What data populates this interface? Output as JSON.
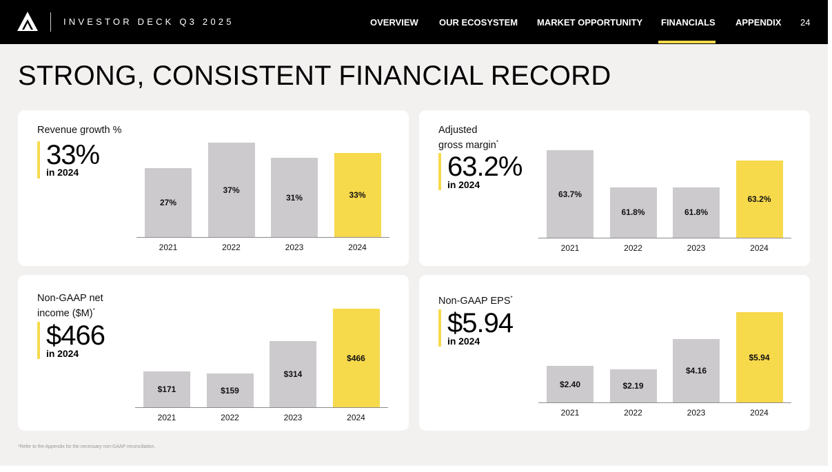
{
  "header": {
    "deck_title": "INVESTOR DECK Q3 2025",
    "nav": [
      "OVERVIEW",
      "OUR ECOSYSTEM",
      "MARKET OPPORTUNITY",
      "FINANCIALS",
      "APPENDIX"
    ],
    "active_nav": "FINANCIALS",
    "page_number": "24"
  },
  "page_title": "STRONG, CONSISTENT FINANCIAL RECORD",
  "colors": {
    "highlight": "#f7d94c",
    "bar": "#cccacd",
    "topbar": "#000000",
    "background": "#f3f0f0"
  },
  "cards": [
    {
      "label_line1": "Revenue growth %",
      "label_line2": "",
      "footnote_mark": "",
      "kpi_value": "33%",
      "kpi_in": "in",
      "kpi_year": "2024"
    },
    {
      "label_line1": "Adjusted",
      "label_line2": "gross margin",
      "footnote_mark": "*",
      "kpi_value": "63.2%",
      "kpi_in": "in",
      "kpi_year": "2024"
    },
    {
      "label_line1": "Non-GAAP net",
      "label_line2": "income ($M)",
      "footnote_mark": "*",
      "kpi_value": "$466",
      "kpi_in": "in",
      "kpi_year": "2024"
    },
    {
      "label_line1": "Non-GAAP EPS",
      "label_line2": "",
      "footnote_mark": "*",
      "kpi_value": "$5.94",
      "kpi_in": "in",
      "kpi_year": "2024"
    }
  ],
  "chart_data": [
    {
      "type": "bar",
      "title": "Revenue growth %",
      "categories": [
        "2021",
        "2022",
        "2023",
        "2024"
      ],
      "values": [
        27,
        37,
        31,
        33
      ],
      "data_labels": [
        "27%",
        "37%",
        "31%",
        "33%"
      ],
      "highlight_index": 3,
      "ylim": [
        0,
        40
      ]
    },
    {
      "type": "bar",
      "title": "Adjusted gross margin",
      "categories": [
        "2021",
        "2022",
        "2023",
        "2024"
      ],
      "values": [
        63.7,
        61.8,
        61.8,
        63.2
      ],
      "data_labels": [
        "63.7%",
        "61.8%",
        "61.8%",
        "63.2%"
      ],
      "highlight_index": 3,
      "ylim": [
        59.2,
        64.0
      ]
    },
    {
      "type": "bar",
      "title": "Non-GAAP net income ($M)",
      "categories": [
        "2021",
        "2022",
        "2023",
        "2024"
      ],
      "values": [
        171,
        159,
        314,
        466
      ],
      "data_labels": [
        "$171",
        "$159",
        "$314",
        "$466"
      ],
      "highlight_index": 3,
      "ylim": [
        0,
        466
      ]
    },
    {
      "type": "bar",
      "title": "Non-GAAP EPS",
      "categories": [
        "2021",
        "2022",
        "2023",
        "2024"
      ],
      "values": [
        2.4,
        2.19,
        4.16,
        5.94
      ],
      "data_labels": [
        "$2.40",
        "$2.19",
        "$4.16",
        "$5.94"
      ],
      "highlight_index": 3,
      "ylim": [
        0,
        6.0
      ]
    }
  ],
  "footnote": "*Refer to the Appendix for the necessary non-GAAP reconciliation."
}
